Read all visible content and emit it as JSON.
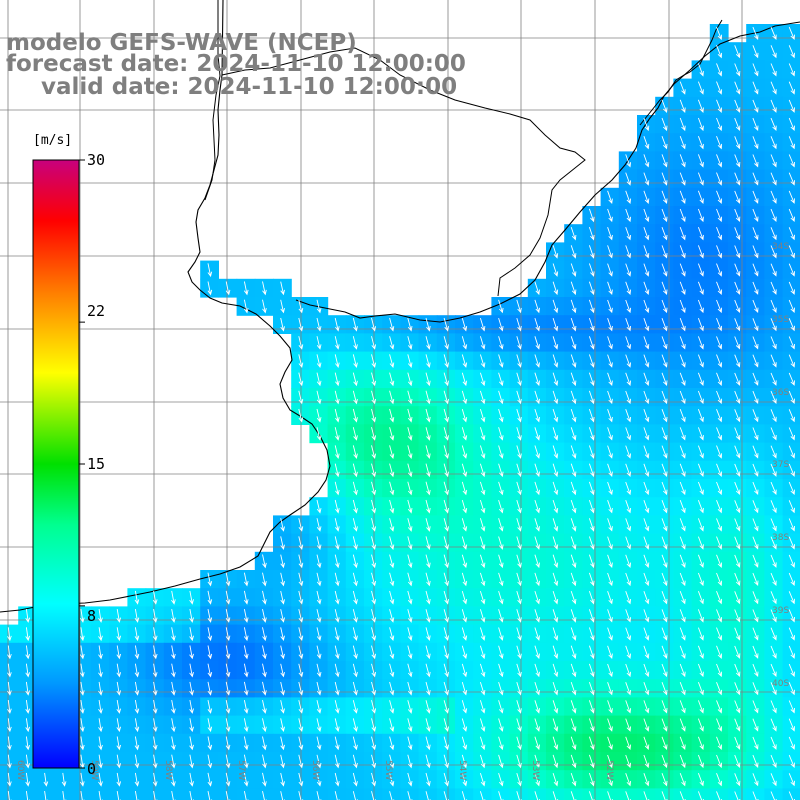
{
  "title": {
    "model": "modelo GEFS-WAVE (NCEP)",
    "forecast": "forecast date: 2024-11-10 12:00:00",
    "valid": "valid date: 2024-11-10 12:00:00"
  },
  "colorbar": {
    "unit": "[m/s]",
    "tick_labels": [
      "30",
      "22",
      "15",
      "8",
      "0"
    ],
    "tick_values": [
      30,
      22,
      15,
      8,
      0
    ],
    "range": [
      0,
      30
    ],
    "colors": [
      "#0000ff",
      "#0099ff",
      "#00ffff",
      "#00e000",
      "#ffff00",
      "#ff8000",
      "#ff0000",
      "#c8007d"
    ]
  },
  "map": {
    "region": "Rio de la Plata and adjacent South Atlantic",
    "lon_labels": [
      "60W",
      "59W",
      "58W",
      "57W",
      "56W",
      "55W",
      "54W",
      "53W",
      "52W"
    ],
    "lat_labels": [
      "34S",
      "35S",
      "36S",
      "37S",
      "38S",
      "39S",
      "40S"
    ],
    "field": "surface wind speed with direction arrows",
    "prevailing_direction": "from north-northwest toward south-southeast",
    "colors": {
      "land": "#ffffff",
      "coast": "#000000",
      "grid": "#808080",
      "arrow": "#ffffff",
      "title": "#7f7f7f"
    }
  }
}
